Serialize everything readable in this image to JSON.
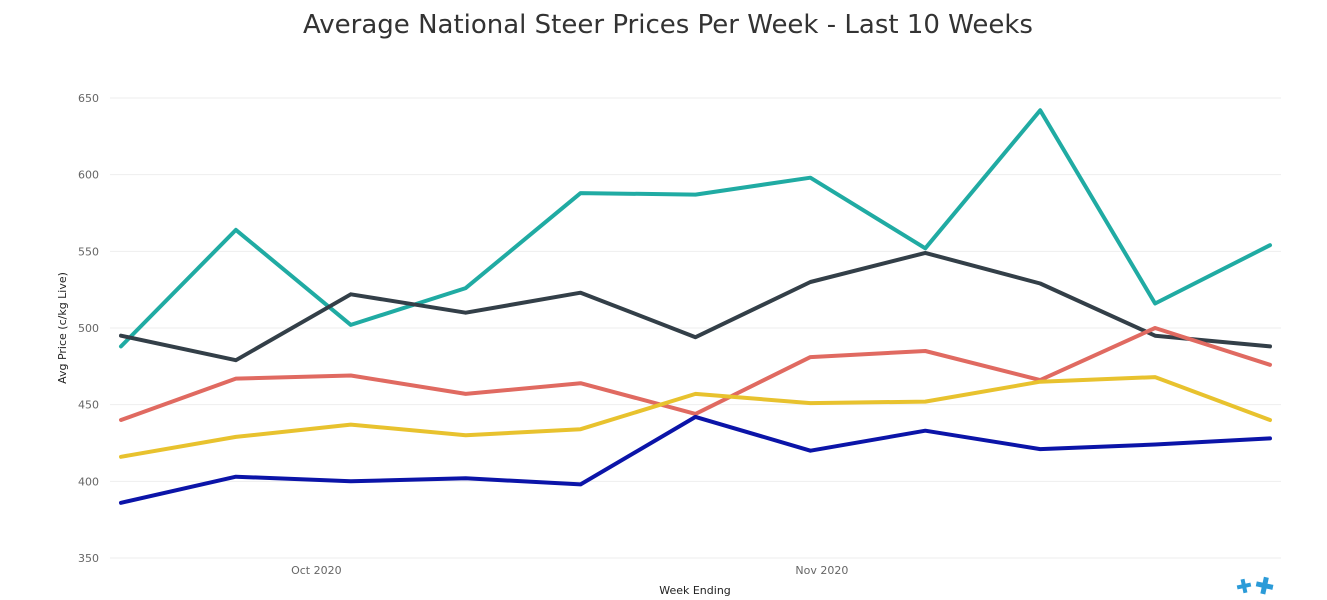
{
  "chart_data": {
    "type": "line",
    "title": "Average National Steer Prices Per Week - Last 10 Weeks",
    "xlabel": "Week Ending",
    "ylabel": "Avg Price (c/kg Live)",
    "ylim": [
      350,
      650
    ],
    "yticks": [
      350,
      400,
      450,
      500,
      550,
      600,
      650
    ],
    "xticks": [
      {
        "label": "Oct 2020",
        "at": 1.7
      },
      {
        "label": "Nov 2020",
        "at": 6.1
      }
    ],
    "x": [
      0,
      1,
      2,
      3,
      4,
      5,
      6,
      7,
      8,
      9,
      10
    ],
    "grid": true,
    "legend": "none",
    "series": [
      {
        "color": "#20aba3",
        "values": [
          488,
          564,
          502,
          526,
          588,
          587,
          598,
          552,
          642,
          516,
          554
        ]
      },
      {
        "color": "#333f48",
        "values": [
          495,
          479,
          522,
          510,
          523,
          494,
          530,
          549,
          529,
          495,
          488
        ]
      },
      {
        "color": "#e06a61",
        "values": [
          440,
          467,
          469,
          457,
          464,
          444,
          481,
          485,
          466,
          500,
          476
        ]
      },
      {
        "color": "#e8c22e",
        "values": [
          416,
          429,
          437,
          430,
          434,
          457,
          451,
          452,
          465,
          468,
          440
        ]
      },
      {
        "color": "#0b14a8",
        "values": [
          386,
          403,
          400,
          402,
          398,
          442,
          420,
          433,
          421,
          424,
          428
        ]
      }
    ]
  },
  "branding": {
    "logo_icon": "cross-logo-icon",
    "logo_color": "#2b9bd8"
  }
}
